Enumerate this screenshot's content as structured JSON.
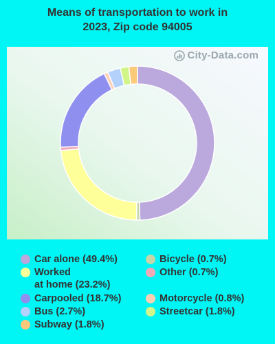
{
  "chart_data": {
    "type": "pie",
    "variant": "donut",
    "title_lines": [
      "Means of transportation to work in",
      "2023, Zip code 94005"
    ],
    "watermark": "City-Data.com",
    "legend_placement": "bottom",
    "slices": [
      {
        "label": "Car alone (49.4%)",
        "name": "Car alone",
        "value": 49.4,
        "color": "#bba8dc"
      },
      {
        "label": "Bicycle (0.7%)",
        "name": "Bicycle",
        "value": 0.7,
        "color": "#c5d6a8"
      },
      {
        "label": "Worked\nat home (23.2%)",
        "name": "Worked at home",
        "value": 23.2,
        "color": "#ffff99"
      },
      {
        "label": "Other (0.7%)",
        "name": "Other",
        "value": 0.7,
        "color": "#f0a9b7"
      },
      {
        "label": "Carpooled (18.7%)",
        "name": "Carpooled",
        "value": 18.7,
        "color": "#8f8ff0"
      },
      {
        "label": "Motorcycle (0.8%)",
        "name": "Motorcycle",
        "value": 0.8,
        "color": "#fbd0b5"
      },
      {
        "label": "Bus (2.7%)",
        "name": "Bus",
        "value": 2.7,
        "color": "#b3d1fb"
      },
      {
        "label": "Streetcar (1.8%)",
        "name": "Streetcar",
        "value": 1.8,
        "color": "#d2f58a"
      },
      {
        "label": "Subway (1.8%)",
        "name": "Subway",
        "value": 1.8,
        "color": "#fbc97a"
      }
    ]
  }
}
